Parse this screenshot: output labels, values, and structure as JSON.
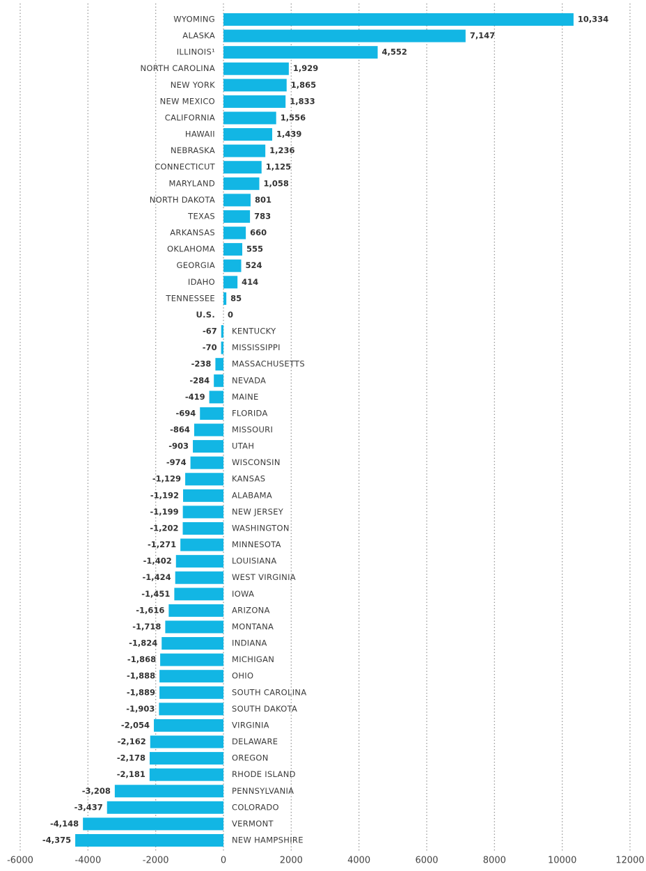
{
  "chart_data": {
    "type": "hbar",
    "categories": [
      "WYOMING",
      "ALASKA",
      "ILLINOIS¹",
      "NORTH CAROLINA",
      "NEW YORK",
      "NEW MEXICO",
      "CALIFORNIA",
      "HAWAII",
      "NEBRASKA",
      "CONNECTICUT",
      "MARYLAND",
      "NORTH DAKOTA",
      "TEXAS",
      "ARKANSAS",
      "OKLAHOMA",
      "GEORGIA",
      "IDAHO",
      "TENNESSEE",
      "U.S.",
      "KENTUCKY",
      "MISSISSIPPI",
      "MASSACHUSETTS",
      "NEVADA",
      "MAINE",
      "FLORIDA",
      "MISSOURI",
      "UTAH",
      "WISCONSIN",
      "KANSAS",
      "ALABAMA",
      "NEW JERSEY",
      "WASHINGTON",
      "MINNESOTA",
      "LOUISIANA",
      "WEST VIRGINIA",
      "IOWA",
      "ARIZONA",
      "MONTANA",
      "INDIANA",
      "MICHIGAN",
      "OHIO",
      "SOUTH CAROLINA",
      "SOUTH DAKOTA",
      "VIRGINIA",
      "DELAWARE",
      "OREGON",
      "RHODE ISLAND",
      "PENNSYLVANIA",
      "COLORADO",
      "VERMONT",
      "NEW HAMPSHIRE"
    ],
    "values": [
      10334,
      7147,
      4552,
      1929,
      1865,
      1833,
      1556,
      1439,
      1236,
      1125,
      1058,
      801,
      783,
      660,
      555,
      524,
      414,
      85,
      0,
      -67,
      -70,
      -238,
      -284,
      -419,
      -694,
      -864,
      -903,
      -974,
      -1129,
      -1192,
      -1199,
      -1202,
      -1271,
      -1402,
      -1424,
      -1451,
      -1616,
      -1718,
      -1824,
      -1868,
      -1888,
      -1889,
      -1903,
      -2054,
      -2162,
      -2178,
      -2181,
      -3208,
      -3437,
      -4148,
      -4375
    ],
    "value_labels": [
      "10,334",
      "7,147",
      "4,552",
      "1,929",
      "1,865",
      "1,833",
      "1,556",
      "1,439",
      "1,236",
      "1,125",
      "1,058",
      "801",
      "783",
      "660",
      "555",
      "524",
      "414",
      "85",
      "0",
      "-67",
      "-70",
      "-238",
      "-284",
      "-419",
      "-694",
      "-864",
      "-903",
      "-974",
      "-1,129",
      "-1,192",
      "-1,199",
      "-1,202",
      "-1,271",
      "-1,402",
      "-1,424",
      "-1,451",
      "-1,616",
      "-1,718",
      "-1,824",
      "-1,868",
      "-1,888",
      "-1,889",
      "-1,903",
      "-2,054",
      "-2,162",
      "-2,178",
      "-2,181",
      "-3,208",
      "-3,437",
      "-4,148",
      "-4,375"
    ],
    "color": "#12b6e4",
    "highlight": {
      "category": "U.S.",
      "color": "#1a93a3"
    },
    "xlim": [
      -6000,
      12000
    ],
    "xticks": [
      -6000,
      -4000,
      -2000,
      0,
      2000,
      4000,
      6000,
      8000,
      10000,
      12000
    ],
    "grid": true
  }
}
